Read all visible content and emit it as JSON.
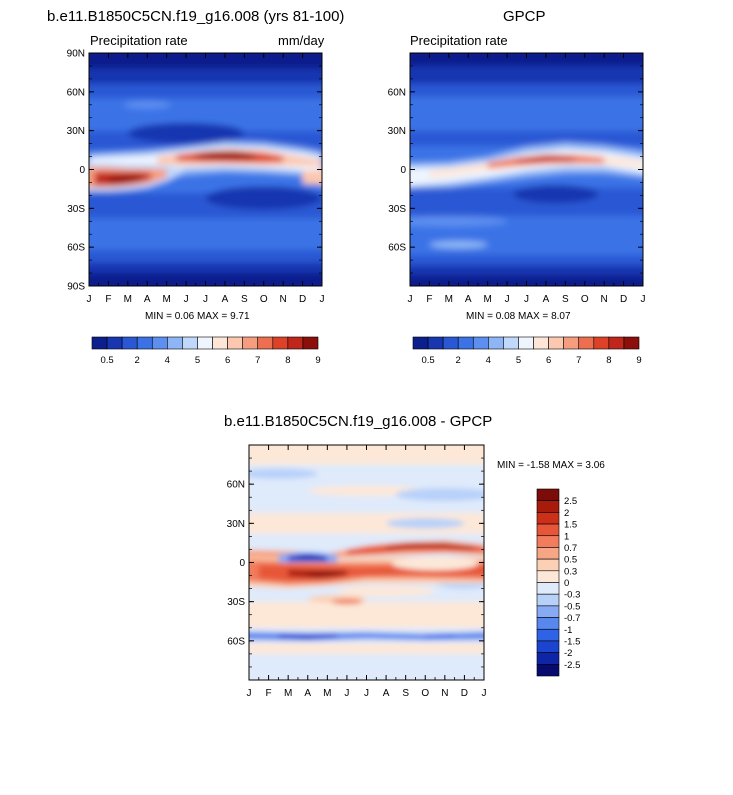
{
  "chart_data": [
    {
      "type": "heatmap",
      "id": "model",
      "title": "b.e11.B1850C5CN.f19_g16.008 (yrs 81-100)",
      "left_subtitle": "Precipitation rate",
      "right_subtitle": "mm/day",
      "x_ticks": [
        "J",
        "F",
        "M",
        "A",
        "M",
        "J",
        "J",
        "A",
        "S",
        "O",
        "N",
        "D",
        "J"
      ],
      "y_ticks": [
        "90N",
        "60N",
        "30N",
        "0",
        "30S",
        "60S",
        "90S"
      ],
      "y_tick_values": [
        90,
        60,
        30,
        0,
        -30,
        -60,
        -90
      ],
      "ylim": [
        -90,
        90
      ],
      "min_label": "MIN = ",
      "min_value": "0.06",
      "max_label": "MAX = ",
      "max_value": "9.71",
      "levels": [
        0.5,
        1,
        2,
        3,
        4,
        4.5,
        5,
        5.5,
        6,
        6.5,
        7,
        7.5,
        8,
        8.5,
        9
      ],
      "colorbar_labels": [
        "0.5",
        "2",
        "4",
        "5",
        "6",
        "7",
        "8",
        "9"
      ],
      "colors": [
        "#0c1f8c",
        "#1736b0",
        "#2a58d4",
        "#3b73e6",
        "#5d8ff0",
        "#8eb6f6",
        "#bfd8fb",
        "#eef5ff",
        "#fde6d8",
        "#fcc8b0",
        "#f79d7f",
        "#ee6e50",
        "#dd4128",
        "#c0261a",
        "#8c0f0c"
      ],
      "zonal_features": [
        {
          "lat": "90N-75N",
          "value": 0.4
        },
        {
          "lat": "60N-30N",
          "value": 2.5
        },
        {
          "lat": "ITCZ north, Jun-Oct",
          "value": 9.7
        },
        {
          "lat": "ITCZ south, Feb-Apr",
          "value": 9.0
        },
        {
          "lat": "30S",
          "value": 1.0
        },
        {
          "lat": "90S-75S",
          "value": 0.3
        }
      ]
    },
    {
      "type": "heatmap",
      "id": "obs",
      "title": "GPCP",
      "left_subtitle": "Precipitation rate",
      "x_ticks": [
        "J",
        "F",
        "M",
        "A",
        "M",
        "J",
        "J",
        "A",
        "S",
        "O",
        "N",
        "D",
        "J"
      ],
      "y_ticks": [
        "60N",
        "30N",
        "0",
        "30S",
        "60S"
      ],
      "y_tick_values": [
        60,
        30,
        0,
        -30,
        -60
      ],
      "ylim": [
        -90,
        90
      ],
      "min_label": "MIN = ",
      "min_value": "0.08",
      "max_label": "MAX = ",
      "max_value": "8.07",
      "levels": [
        0.5,
        1,
        2,
        3,
        4,
        4.5,
        5,
        5.5,
        6,
        6.5,
        7,
        7.5,
        8,
        8.5,
        9
      ],
      "colorbar_labels": [
        "0.5",
        "2",
        "4",
        "5",
        "6",
        "7",
        "8",
        "9"
      ],
      "colors": [
        "#0c1f8c",
        "#1736b0",
        "#2a58d4",
        "#3b73e6",
        "#5d8ff0",
        "#8eb6f6",
        "#bfd8fb",
        "#eef5ff",
        "#fde6d8",
        "#fcc8b0",
        "#f79d7f",
        "#ee6e50",
        "#dd4128",
        "#c0261a",
        "#8c0f0c"
      ],
      "zonal_features": [
        {
          "lat": "90N-75N",
          "value": 0.5
        },
        {
          "lat": "ITCZ north, Jun-Oct",
          "value": 8.0
        },
        {
          "lat": "ITCZ south, Jan-Apr",
          "value": 5.5
        },
        {
          "lat": "20S",
          "value": 1.5
        },
        {
          "lat": "90S-75S",
          "value": 0.3
        }
      ]
    },
    {
      "type": "heatmap",
      "id": "diff",
      "title": "b.e11.B1850C5CN.f19_g16.008 - GPCP",
      "x_ticks": [
        "J",
        "F",
        "M",
        "A",
        "M",
        "J",
        "J",
        "A",
        "S",
        "O",
        "N",
        "D",
        "J"
      ],
      "y_ticks": [
        "60N",
        "30N",
        "0",
        "30S",
        "60S"
      ],
      "y_tick_values": [
        60,
        30,
        0,
        -30,
        -60
      ],
      "ylim": [
        -90,
        90
      ],
      "min_label": "MIN = ",
      "min_value": "-1.58",
      "max_label": "MAX = ",
      "max_value": "3.06",
      "levels": [
        -2.5,
        -2,
        -1.5,
        -1,
        -0.7,
        -0.5,
        -0.3,
        0,
        0.3,
        0.5,
        0.7,
        1,
        1.5,
        2,
        2.5
      ],
      "colorbar_labels": [
        "2.5",
        "2",
        "1.5",
        "1",
        "0.7",
        "0.5",
        "0.3",
        "0",
        "-0.3",
        "-0.5",
        "-0.7",
        "-1",
        "-1.5",
        "-2",
        "-2.5"
      ],
      "colors": [
        "#070b6f",
        "#0e25a8",
        "#1b44d0",
        "#2f63e6",
        "#5887ee",
        "#86aaf3",
        "#b8d1f9",
        "#dfeafb",
        "#fde8d8",
        "#fbd0b4",
        "#f6a585",
        "#f17d5c",
        "#e75638",
        "#cc3018",
        "#a81a0c",
        "#7c0c08"
      ],
      "zonal_features": [
        {
          "lat": "ITCZ south, Feb-May",
          "value": 3.0
        },
        {
          "lat": "ITCZ north, Jun-Dec",
          "value": 2.5
        },
        {
          "lat": "5N, Mar-Apr",
          "value": -1.5
        },
        {
          "lat": "55S",
          "value": -1.0
        }
      ]
    }
  ]
}
